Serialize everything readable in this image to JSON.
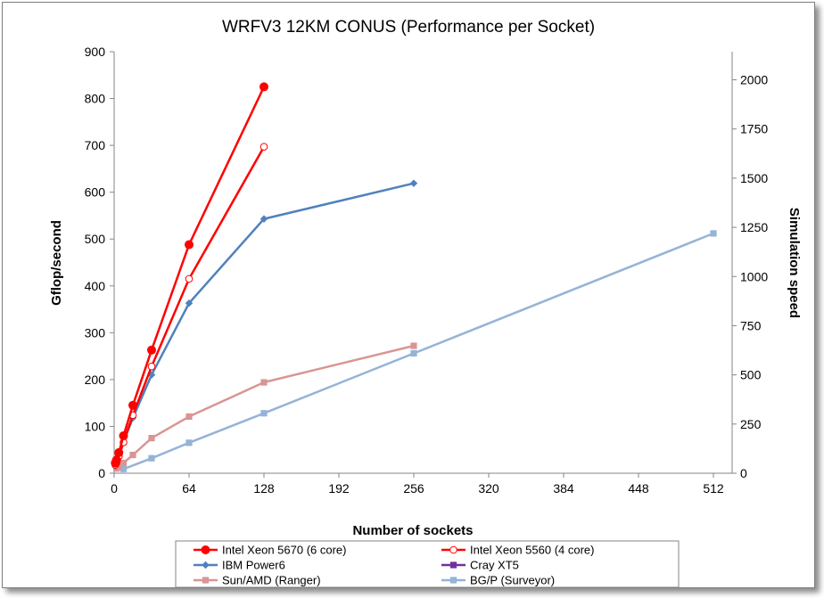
{
  "chart_data": {
    "type": "line",
    "title": "WRFV3 12KM CONUS (Performance per Socket)",
    "xlabel": "Number of sockets",
    "ylabel": "Gflop/second",
    "y2label": "Simulation speed",
    "xlim": [
      0,
      528
    ],
    "ylim": [
      0,
      900
    ],
    "y2lim": [
      0,
      2142.9
    ],
    "xticks": [
      0,
      64,
      128,
      192,
      256,
      320,
      384,
      448,
      512
    ],
    "yticks": [
      0,
      100,
      200,
      300,
      400,
      500,
      600,
      700,
      800,
      900
    ],
    "y2ticks": [
      0,
      250,
      500,
      750,
      1000,
      1250,
      1500,
      1750,
      2000
    ],
    "grid": false,
    "legend_position": "bottom",
    "series": [
      {
        "name": "Intel Xeon 5670 (6 core)",
        "color": "#ff0000",
        "marker": "circle-filled",
        "x": [
          1,
          2,
          4,
          8,
          16,
          32,
          64,
          128
        ],
        "y": [
          22,
          28,
          44,
          80,
          145,
          263,
          488,
          825
        ]
      },
      {
        "name": "Intel Xeon 5560 (4 core)",
        "color": "#ff0000",
        "marker": "circle-open",
        "x": [
          1,
          2,
          4,
          8,
          16,
          32,
          64,
          128
        ],
        "y": [
          18,
          22,
          36,
          66,
          124,
          228,
          415,
          697
        ]
      },
      {
        "name": "IBM Power6",
        "color": "#4f81bd",
        "marker": "diamond",
        "x": [
          1,
          2,
          4,
          8,
          16,
          32,
          64,
          128,
          256
        ],
        "y": [
          15,
          20,
          35,
          67,
          118,
          210,
          363,
          543,
          619
        ]
      },
      {
        "name": "Cray XT5",
        "color": "#7030a0",
        "marker": "square",
        "x": [],
        "y": []
      },
      {
        "name": "Sun/AMD (Ranger)",
        "color": "#d99594",
        "marker": "square",
        "x": [
          2,
          4,
          8,
          16,
          32,
          64,
          128,
          256
        ],
        "y": [
          10,
          13,
          22,
          39,
          75,
          121,
          194,
          272
        ]
      },
      {
        "name": "BG/P (Surveyor)",
        "color": "#95b3d7",
        "marker": "square",
        "x": [
          8,
          32,
          64,
          128,
          256,
          512
        ],
        "y": [
          9,
          32,
          65,
          128,
          256,
          512
        ]
      }
    ]
  }
}
